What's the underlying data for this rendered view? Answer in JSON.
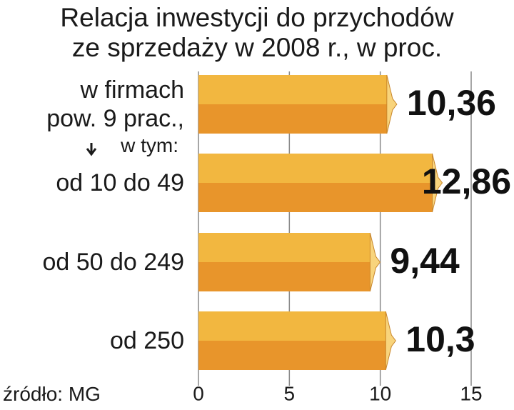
{
  "chart_data": {
    "type": "barh",
    "title": "Relacja inwestycji do przychodów\nze sprzedaży w 2008 r., w proc.",
    "categories": [
      "w firmach\npow. 9 prac.,",
      "od 10 do 49",
      "od 50 do 249",
      "od 250"
    ],
    "annotation": "w tym:",
    "values": [
      10.36,
      12.86,
      9.44,
      10.3
    ],
    "value_labels": [
      "10,36",
      "12,86",
      "9,44",
      "10,3"
    ],
    "xlim": [
      0,
      15
    ],
    "xticks": [
      0,
      5,
      10,
      15
    ],
    "grid": true,
    "colors": {
      "top": "#f2b740",
      "bottom": "#e8952b",
      "tip": "#f8d47c"
    },
    "source": "źródło: MG"
  }
}
